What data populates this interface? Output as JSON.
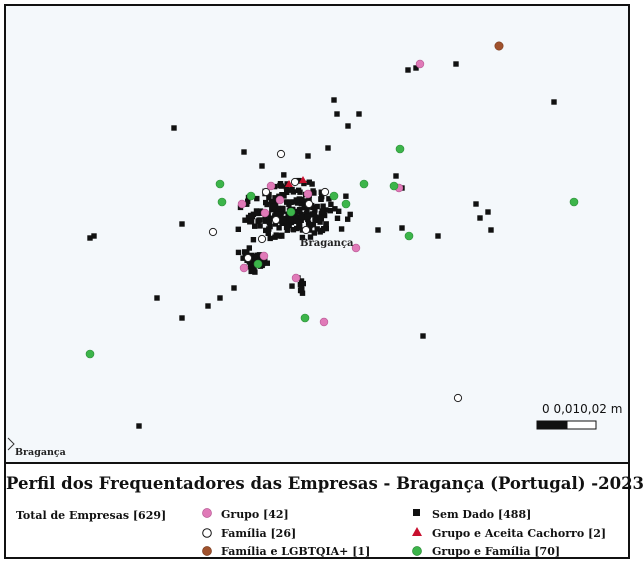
{
  "title": "Perfil dos Frequentadores das Empresas - Bragança (Portugal) -2023",
  "total_label": "Total de Empresas [629]",
  "city_label": "Bragança",
  "corner_label": "Bragança",
  "scale_label": "0  0,010,02 m",
  "legend": [
    {
      "label": "Grupo [42]",
      "symbol": "circle",
      "color": "#e07ab8"
    },
    {
      "label": "Família [26]",
      "symbol": "hollow-circle",
      "color": "#ffffff"
    },
    {
      "label": "Família  e  LGBTQIA+ [1]",
      "symbol": "circle",
      "color": "#a0522d"
    },
    {
      "label": "Sem Dado [488]",
      "symbol": "square",
      "color": "#111111"
    },
    {
      "label": "Grupo e  Aceita Cachorro [2]",
      "symbol": "triangle",
      "color": "#c8102e"
    },
    {
      "label": "Grupo  e  Família [70]",
      "symbol": "circle",
      "color": "#3cb54a"
    }
  ]
}
